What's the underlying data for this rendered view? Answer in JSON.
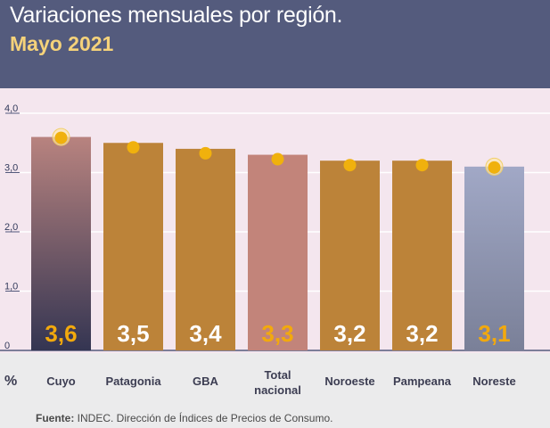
{
  "header": {
    "title": "Variaciones mensuales por región.",
    "subtitle": "Mayo 2021"
  },
  "chart_data": {
    "type": "bar",
    "title": "Variaciones mensuales por región.",
    "subtitle": "Mayo 2021",
    "ylabel": "%",
    "xlabel": "",
    "ylim": [
      0,
      4
    ],
    "yticks": [
      "4,0",
      "3,0",
      "2,0",
      "1,0",
      "0"
    ],
    "ytick_values": [
      4,
      3,
      2,
      1,
      0
    ],
    "categories": [
      [
        "Cuyo"
      ],
      [
        "Patagonia"
      ],
      [
        "GBA"
      ],
      [
        "Total",
        "nacional"
      ],
      [
        "Noroeste"
      ],
      [
        "Pampeana"
      ],
      [
        "Noreste"
      ]
    ],
    "values": [
      3.6,
      3.5,
      3.4,
      3.3,
      3.2,
      3.2,
      3.1
    ],
    "value_labels": [
      "3,6",
      "3,5",
      "3,4",
      "3,3",
      "3,2",
      "3,2",
      "3,1"
    ],
    "bar_styles": [
      "gradient-dark",
      "plain",
      "plain",
      "total",
      "plain",
      "plain",
      "gradient-light"
    ],
    "colors": {
      "bar": "#bc8339",
      "bar_total": "#c2847a",
      "cuyo_top": "#b8837f",
      "cuyo_bottom": "#343552",
      "noreste_top": "#a1a8c6",
      "noreste_bottom": "#7a8098",
      "label_white": "#ffffff",
      "label_gold": "#f2a90d",
      "marker": "#f0b10d",
      "grid": "#ffffff",
      "axis": "#545b7d"
    },
    "grid": true,
    "legend": "none"
  },
  "footer": {
    "source_label": "Fuente:",
    "source_text": " INDEC. Dirección de Índices de Precios de Consumo."
  }
}
